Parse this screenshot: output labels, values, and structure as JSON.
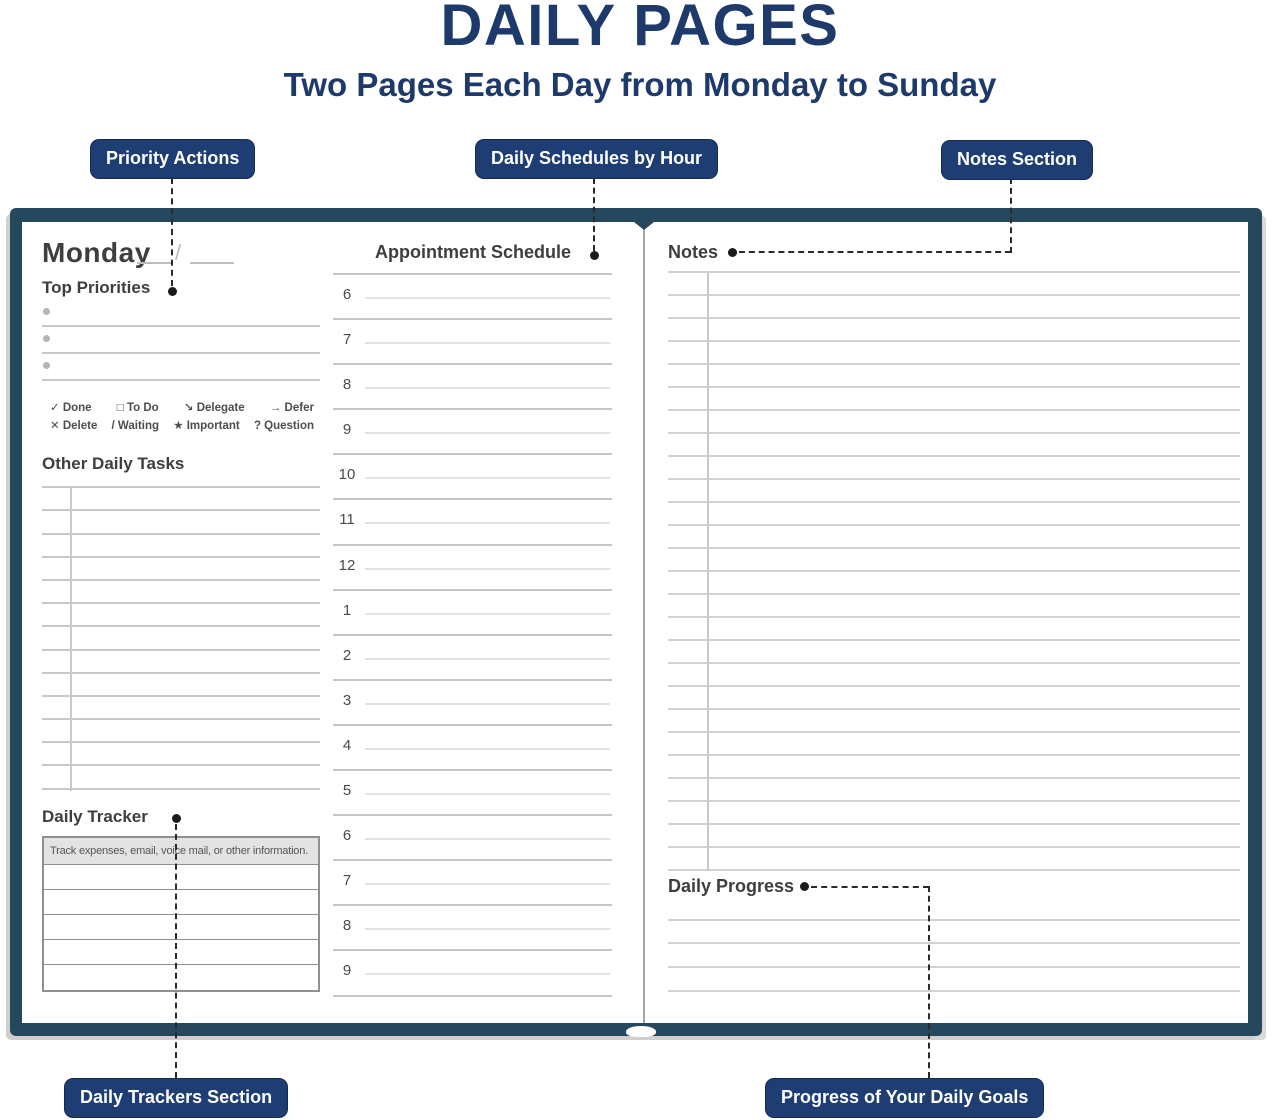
{
  "page": {
    "title": "DAILY PAGES",
    "subtitle": "Two Pages Each Day from Monday to Sunday"
  },
  "callouts": {
    "priority_actions": {
      "label": "Priority Actions"
    },
    "daily_schedules": {
      "label": "Daily Schedules by Hour"
    },
    "notes_section": {
      "label": "Notes Section"
    },
    "daily_trackers": {
      "label": "Daily Trackers Section"
    },
    "daily_progress": {
      "label": "Progress of Your Daily Goals"
    }
  },
  "left_page": {
    "day": "Monday",
    "date_slash": "/",
    "sections": {
      "top_priorities": "Top Priorities",
      "other_daily_tasks": "Other Daily Tasks",
      "daily_tracker": "Daily Tracker"
    },
    "legend": {
      "row1": [
        {
          "symbol": "✓",
          "label": "Done"
        },
        {
          "symbol": "□",
          "label": "To Do"
        },
        {
          "symbol": "↘",
          "label": "Delegate"
        },
        {
          "symbol": "→",
          "label": "Defer"
        }
      ],
      "row2": [
        {
          "symbol": "✕",
          "label": "Delete"
        },
        {
          "symbol": "/",
          "label": "Waiting"
        },
        {
          "symbol": "★",
          "label": "Important"
        },
        {
          "symbol": "?",
          "label": "Question"
        }
      ]
    },
    "tracker_header": "Track expenses, email, voice mail, or other information.",
    "priority_row_count": 3,
    "task_line_count": 14,
    "tracker_row_count": 5
  },
  "schedule": {
    "title": "Appointment Schedule",
    "hours": [
      "6",
      "7",
      "8",
      "9",
      "10",
      "11",
      "12",
      "1",
      "2",
      "3",
      "4",
      "5",
      "6",
      "7",
      "8",
      "9"
    ]
  },
  "right_page": {
    "notes_title": "Notes",
    "daily_progress_title": "Daily Progress",
    "notes_line_count": 27,
    "progress_line_count": 4
  },
  "colors": {
    "navy": "#1d3a6b",
    "badge": "#1e3d72",
    "cover": "#25485f"
  }
}
